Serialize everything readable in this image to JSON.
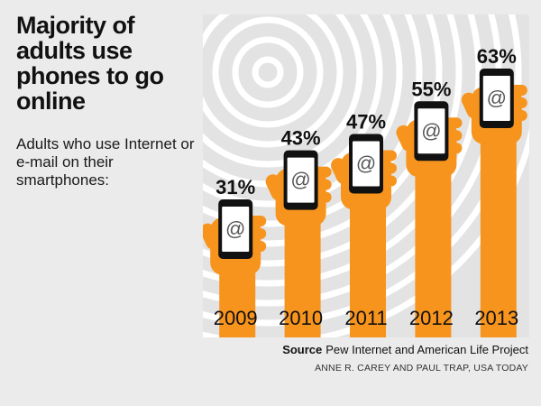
{
  "title": "Majority of adults use phones to go online",
  "subtitle": "Adults who use Internet or e-mail on their smartphones:",
  "source_label": "Source",
  "source_text": "Pew Internet and American Life Project",
  "credit": "ANNE R. CAREY AND PAUL TRAP, USA TODAY",
  "colors": {
    "accent": "#f7941d",
    "phone_body": "#111111",
    "phone_screen": "#ffffff",
    "rings": "#ffffff",
    "panel_bg": "#e3e3e3",
    "page_bg": "#ebebeb"
  },
  "icons": [
    "hand-holding-phone-icon",
    "at-sign-icon",
    "concentric-rings"
  ],
  "chart_data": {
    "type": "bar",
    "categories": [
      "2009",
      "2010",
      "2011",
      "2012",
      "2013"
    ],
    "values": [
      31,
      43,
      47,
      55,
      63
    ],
    "value_labels": [
      "31%",
      "43%",
      "47%",
      "55%",
      "63%"
    ],
    "unit": "%",
    "screen_symbol": "@",
    "title": "Majority of adults use phones to go online",
    "subtitle": "Adults who use Internet or e-mail on their smartphones:",
    "grid": false
  }
}
